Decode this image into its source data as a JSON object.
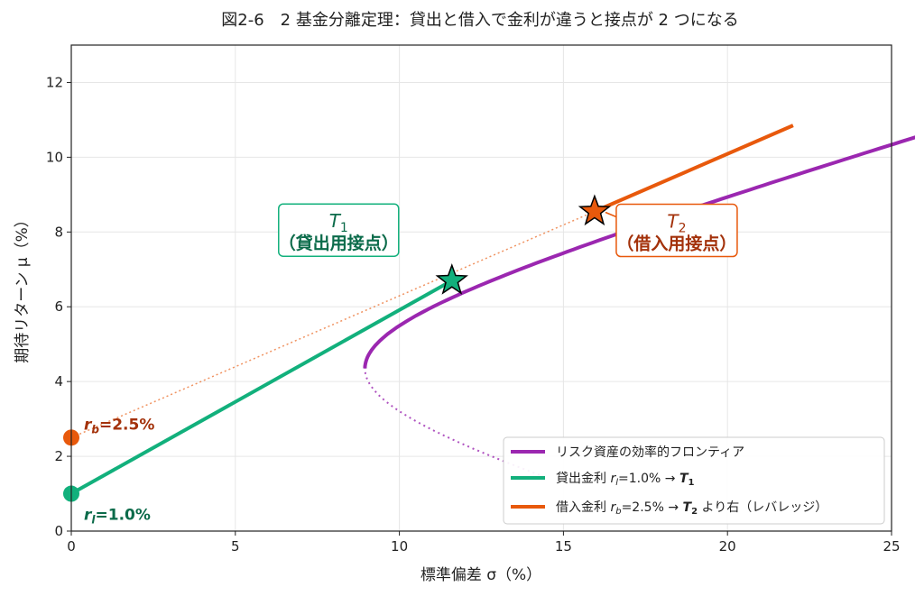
{
  "chart_data": {
    "type": "line",
    "title": "図2-6　2 基金分離定理：貸出と借入で金利が違うと接点が 2 つになる",
    "xlabel": "標準偏差 σ（%）",
    "ylabel": "期待リターン μ（%）",
    "xlim": [
      0,
      25
    ],
    "ylim": [
      0,
      13
    ],
    "xticks": [
      "0",
      "5",
      "10",
      "15",
      "20",
      "25"
    ],
    "yticks": [
      "0",
      "2",
      "4",
      "6",
      "8",
      "10",
      "12"
    ],
    "grid": true,
    "legend_position": "bottom-right",
    "colors": {
      "frontier": "#9b27b0",
      "lending": "#12b07c",
      "borrowing": "#e8590c",
      "lending_dark": "#0b6b4a",
      "borrowing_dark": "#a3310a"
    },
    "frontier": {
      "min_variance": [
        8.95,
        4.35
      ],
      "a": 8.95,
      "b": 3.9,
      "mu0": 4.35,
      "efficient_range": [
        4.35,
        11.7
      ],
      "inefficient_range": [
        1.5,
        4.35
      ]
    },
    "lending_line": {
      "points": [
        [
          0,
          1.0
        ],
        [
          11.6,
          6.7
        ]
      ]
    },
    "borrowing_line": {
      "x": [
        0,
        15.95,
        22.0
      ],
      "y": [
        2.5,
        8.55,
        10.85
      ]
    },
    "points": {
      "T1": [
        11.6,
        6.7
      ],
      "T2": [
        15.95,
        8.55
      ],
      "rl": [
        0,
        1.0
      ],
      "rb": [
        0,
        2.5
      ]
    },
    "annotations": {
      "T1": {
        "label": "T",
        "sub": "1",
        "desc": "（貸出用接点）"
      },
      "T2": {
        "label": "T",
        "sub": "2",
        "desc": "（借入用接点）"
      },
      "rl": {
        "r": "r",
        "sub": "l",
        "value": "=1.0%"
      },
      "rb": {
        "r": "r",
        "sub": "b",
        "value": "=2.5%"
      }
    },
    "series": [
      {
        "name": "リスク資産の効率的フロンティア"
      },
      {
        "name": "貸出金利 r_l=1.0% → T1"
      },
      {
        "name": "借入金利 r_b=2.5% → T2 より右（レバレッジ）"
      }
    ],
    "legend": {
      "frontier": {
        "text": "リスク資産の効率的フロンティア"
      },
      "lending": {
        "pre": "貸出金利 ",
        "r": "r",
        "sub": "l",
        "mid": "=1.0% → ",
        "T": "T",
        "tsub": "1",
        "post": ""
      },
      "borrowing": {
        "pre": "借入金利 ",
        "r": "r",
        "sub": "b",
        "mid": "=2.5% → ",
        "T": "T",
        "tsub": "2",
        "post": " より右（レバレッジ）"
      }
    }
  }
}
